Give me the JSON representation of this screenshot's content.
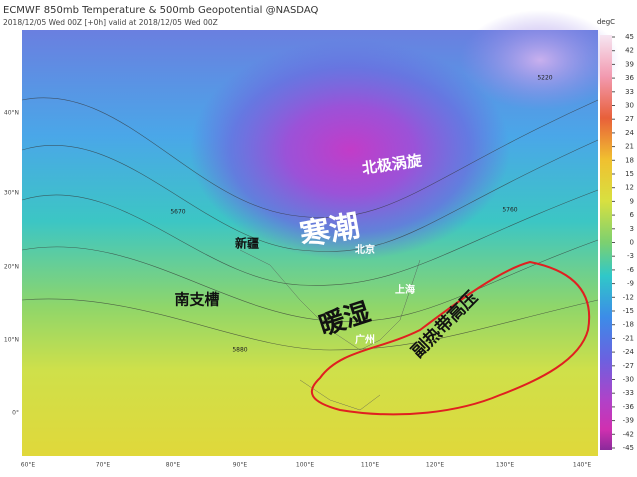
{
  "header": {
    "title": "ECMWF 850mb Temperature & 500mb Geopotential @NASDAQ",
    "subtitle": "2018/12/05 Wed 00Z [+0h] valid at 2018/12/05 Wed 00Z"
  },
  "colorbar": {
    "unit": "degC",
    "ticks": [
      45,
      42,
      39,
      36,
      33,
      30,
      27,
      24,
      21,
      18,
      15,
      12,
      9,
      6,
      3,
      0,
      -3,
      -6,
      -9,
      -12,
      -15,
      -18,
      -21,
      -24,
      -27,
      -30,
      -33,
      -36,
      -39,
      -42,
      -45
    ]
  },
  "latitude_labels": [
    "40°N",
    "30°N",
    "20°N",
    "10°N",
    "0°"
  ],
  "longitude_labels": [
    "60°E",
    "70°E",
    "80°E",
    "90°E",
    "100°E",
    "110°E",
    "120°E",
    "130°E",
    "140°E"
  ],
  "contour_labels": [
    "5220",
    "5670",
    "5880",
    "5760"
  ],
  "annotations": [
    "北极涡旋",
    "寒潮",
    "新疆",
    "北京",
    "上海",
    "南支槽",
    "暖湿",
    "广州",
    "副热带高压"
  ]
}
